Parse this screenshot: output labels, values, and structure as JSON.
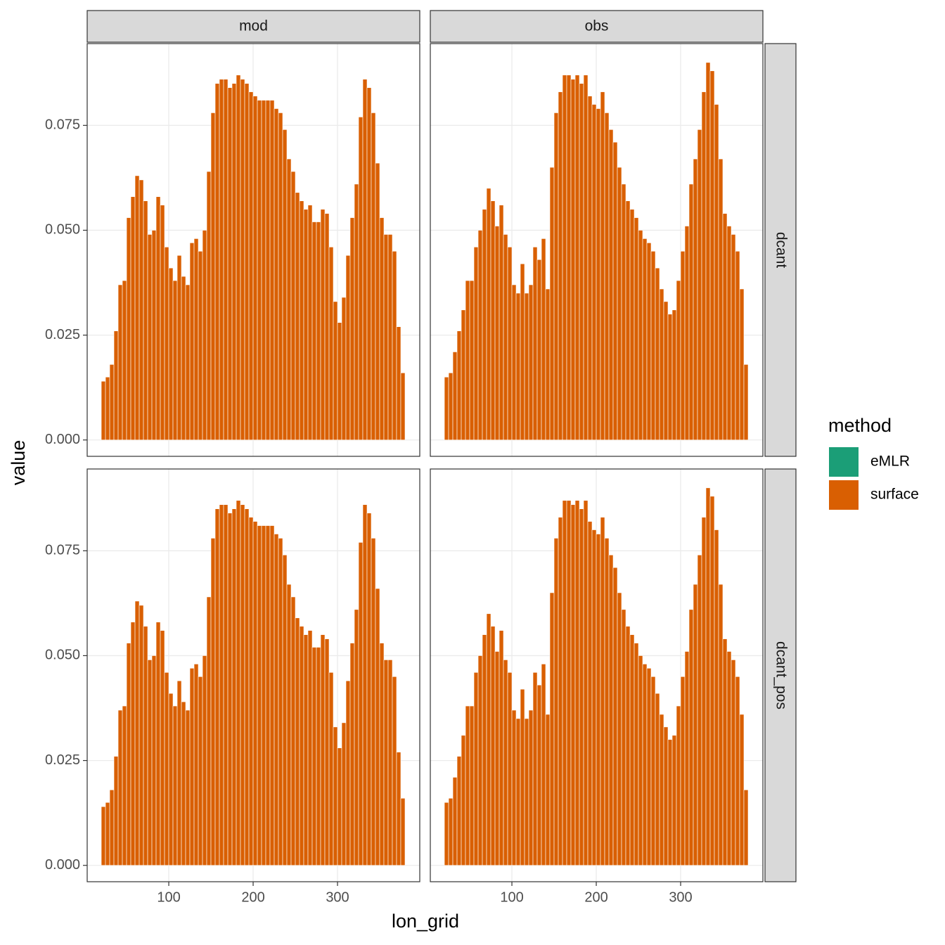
{
  "chart_data": {
    "type": "bar",
    "x_label": "lon_grid",
    "y_label": "value",
    "legend_title": "method",
    "series": [
      {
        "name": "eMLR",
        "color": "#1b9e77"
      },
      {
        "name": "surface",
        "color": "#d95f02"
      }
    ],
    "col_strips": [
      "mod",
      "obs"
    ],
    "row_strips": [
      "dcant",
      "dcant_pos"
    ],
    "x": [
      22.5,
      27.5,
      32.5,
      37.5,
      42.5,
      47.5,
      52.5,
      57.5,
      62.5,
      67.5,
      72.5,
      77.5,
      82.5,
      87.5,
      92.5,
      97.5,
      102.5,
      107.5,
      112.5,
      117.5,
      122.5,
      127.5,
      132.5,
      137.5,
      142.5,
      147.5,
      152.5,
      157.5,
      162.5,
      167.5,
      172.5,
      177.5,
      182.5,
      187.5,
      192.5,
      197.5,
      202.5,
      207.5,
      212.5,
      217.5,
      222.5,
      227.5,
      232.5,
      237.5,
      242.5,
      247.5,
      252.5,
      257.5,
      262.5,
      267.5,
      272.5,
      277.5,
      282.5,
      287.5,
      292.5,
      297.5,
      302.5,
      307.5,
      312.5,
      317.5,
      322.5,
      327.5,
      332.5,
      337.5,
      342.5,
      347.5,
      352.5,
      357.5,
      362.5,
      367.5,
      372.5,
      377.5
    ],
    "xlim": [
      3.3,
      397.5
    ],
    "xticks": [
      100,
      200,
      300
    ],
    "ylim": [
      -0.0039,
      0.0945
    ],
    "yticks": [
      {
        "value": 0,
        "label": "0.000"
      },
      {
        "value": 0.025,
        "label": "0.025"
      },
      {
        "value": 0.05,
        "label": "0.050"
      },
      {
        "value": 0.075,
        "label": "0.075"
      }
    ],
    "grid": true,
    "panels": [
      [
        0.014,
        0.015,
        0.018,
        0.026,
        0.037,
        0.038,
        0.053,
        0.058,
        0.063,
        0.062,
        0.057,
        0.049,
        0.05,
        0.058,
        0.056,
        0.046,
        0.041,
        0.038,
        0.044,
        0.039,
        0.037,
        0.047,
        0.048,
        0.045,
        0.05,
        0.064,
        0.078,
        0.085,
        0.086,
        0.086,
        0.084,
        0.085,
        0.087,
        0.086,
        0.085,
        0.083,
        0.082,
        0.081,
        0.081,
        0.081,
        0.081,
        0.079,
        0.078,
        0.074,
        0.067,
        0.064,
        0.059,
        0.057,
        0.055,
        0.056,
        0.052,
        0.052,
        0.055,
        0.054,
        0.046,
        0.033,
        0.028,
        0.034,
        0.044,
        0.053,
        0.061,
        0.077,
        0.086,
        0.084,
        0.078,
        0.066,
        0.053,
        0.049,
        0.049,
        0.045,
        0.027,
        0.016
      ],
      [
        0.015,
        0.016,
        0.021,
        0.026,
        0.031,
        0.038,
        0.038,
        0.046,
        0.05,
        0.055,
        0.06,
        0.057,
        0.051,
        0.056,
        0.049,
        0.046,
        0.037,
        0.035,
        0.042,
        0.035,
        0.037,
        0.046,
        0.043,
        0.048,
        0.036,
        0.065,
        0.078,
        0.083,
        0.087,
        0.087,
        0.086,
        0.087,
        0.085,
        0.087,
        0.082,
        0.08,
        0.079,
        0.083,
        0.078,
        0.074,
        0.071,
        0.065,
        0.061,
        0.057,
        0.055,
        0.053,
        0.05,
        0.048,
        0.047,
        0.045,
        0.041,
        0.036,
        0.033,
        0.03,
        0.031,
        0.038,
        0.045,
        0.051,
        0.061,
        0.067,
        0.074,
        0.083,
        0.09,
        0.088,
        0.08,
        0.067,
        0.054,
        0.051,
        0.049,
        0.045,
        0.036,
        0.018
      ],
      [
        0.014,
        0.015,
        0.018,
        0.026,
        0.037,
        0.038,
        0.053,
        0.058,
        0.063,
        0.062,
        0.057,
        0.049,
        0.05,
        0.058,
        0.056,
        0.046,
        0.041,
        0.038,
        0.044,
        0.039,
        0.037,
        0.047,
        0.048,
        0.045,
        0.05,
        0.064,
        0.078,
        0.085,
        0.086,
        0.086,
        0.084,
        0.085,
        0.087,
        0.086,
        0.085,
        0.083,
        0.082,
        0.081,
        0.081,
        0.081,
        0.081,
        0.079,
        0.078,
        0.074,
        0.067,
        0.064,
        0.059,
        0.057,
        0.055,
        0.056,
        0.052,
        0.052,
        0.055,
        0.054,
        0.046,
        0.033,
        0.028,
        0.034,
        0.044,
        0.053,
        0.061,
        0.077,
        0.086,
        0.084,
        0.078,
        0.066,
        0.053,
        0.049,
        0.049,
        0.045,
        0.027,
        0.016
      ],
      [
        0.015,
        0.016,
        0.021,
        0.026,
        0.031,
        0.038,
        0.038,
        0.046,
        0.05,
        0.055,
        0.06,
        0.057,
        0.051,
        0.056,
        0.049,
        0.046,
        0.037,
        0.035,
        0.042,
        0.035,
        0.037,
        0.046,
        0.043,
        0.048,
        0.036,
        0.065,
        0.078,
        0.083,
        0.087,
        0.087,
        0.086,
        0.087,
        0.085,
        0.087,
        0.082,
        0.08,
        0.079,
        0.083,
        0.078,
        0.074,
        0.071,
        0.065,
        0.061,
        0.057,
        0.055,
        0.053,
        0.05,
        0.048,
        0.047,
        0.045,
        0.041,
        0.036,
        0.033,
        0.03,
        0.031,
        0.038,
        0.045,
        0.051,
        0.061,
        0.067,
        0.074,
        0.083,
        0.09,
        0.088,
        0.08,
        0.067,
        0.054,
        0.051,
        0.049,
        0.045,
        0.036,
        0.018
      ]
    ]
  }
}
